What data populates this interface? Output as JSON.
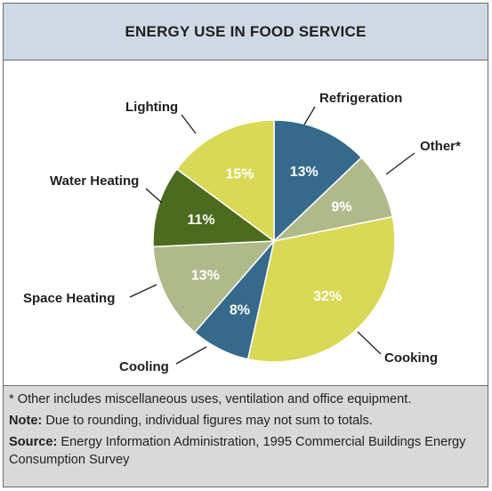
{
  "chart_data": {
    "type": "pie",
    "title": "ENERGY USE IN FOOD SERVICE",
    "slices": [
      {
        "name": "Refrigeration",
        "value": 13,
        "label": "13%",
        "color": "#356a8c"
      },
      {
        "name": "Other*",
        "value": 9,
        "label": "9%",
        "color": "#b0b98a"
      },
      {
        "name": "Cooking",
        "value": 32,
        "label": "32%",
        "color": "#d9d957"
      },
      {
        "name": "Cooling",
        "value": 8,
        "label": "8%",
        "color": "#356a8c"
      },
      {
        "name": "Space Heating",
        "value": 13,
        "label": "13%",
        "color": "#b0b98a"
      },
      {
        "name": "Water Heating",
        "value": 11,
        "label": "11%",
        "color": "#4b6b1e"
      },
      {
        "name": "Lighting",
        "value": 15,
        "label": "15%",
        "color": "#d9d957"
      }
    ]
  },
  "notes": {
    "footnote": "* Other includes miscellaneous uses, ventilation and office equipment.",
    "note_key": "Note:",
    "note_text": "Due to rounding, individual figures may not sum to totals.",
    "source_key": "Source:",
    "source_text": "Energy Information Administration, 1995 Commercial Buildings Energy Consumption Survey"
  },
  "colors": {
    "header_bg": "#cfd9e3",
    "notes_bg": "#d9d9d9"
  }
}
